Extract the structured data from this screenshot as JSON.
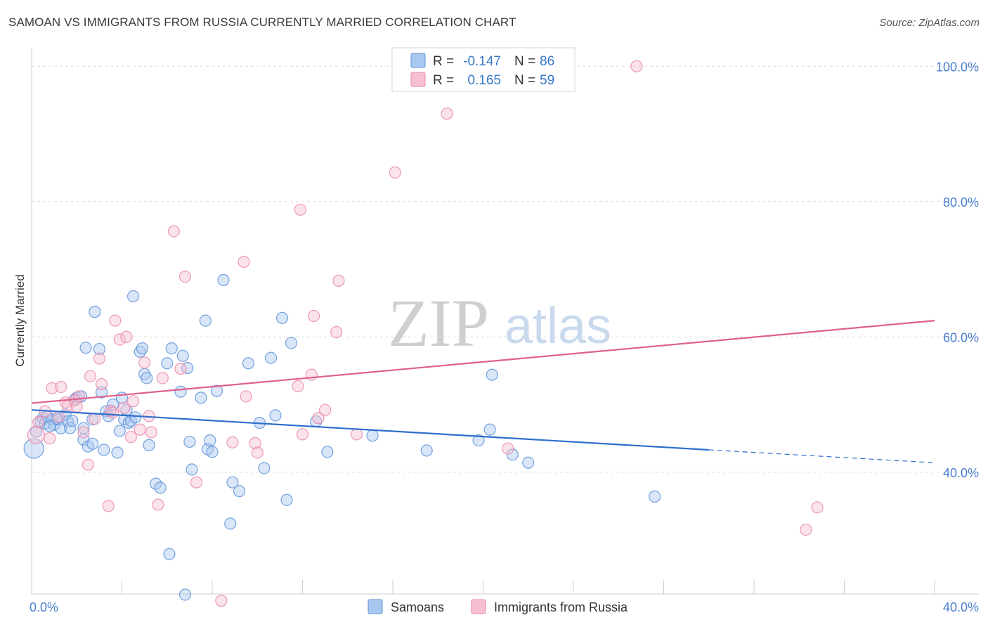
{
  "header": {
    "title": "SAMOAN VS IMMIGRANTS FROM RUSSIA CURRENTLY MARRIED CORRELATION CHART",
    "source_prefix": "Source: ",
    "source_name": "ZipAtlas.com"
  },
  "watermark": {
    "zip": "ZIP",
    "atlas": "atlas"
  },
  "legend": {
    "rows": [
      {
        "r_label": "R =",
        "r_value": "-0.147",
        "n_label": "N =",
        "n_value": "86",
        "color": "#6fa1e3"
      },
      {
        "r_label": "R =",
        "r_value": "0.165",
        "n_label": "N =",
        "n_value": "59",
        "color": "#f09ab8"
      }
    ]
  },
  "colors": {
    "blue_fill": "#a9c8f0",
    "blue_stroke": "#5f93d8",
    "blue_line": "#2d6fcc",
    "pink_fill": "#f6c0d2",
    "pink_stroke": "#e98aab",
    "pink_line": "#e0608c",
    "grid": "#dcdcdc",
    "tick_text": "#4a7fd0"
  },
  "chart_data": {
    "type": "scatter",
    "title": "SAMOAN VS IMMIGRANTS FROM RUSSIA CURRENTLY MARRIED CORRELATION CHART",
    "xlabel": "",
    "ylabel": "Currently Married",
    "xlim": [
      0,
      40
    ],
    "ylim": [
      22,
      102
    ],
    "x_tick_labels": [
      {
        "value": 0,
        "label": "0.0%"
      },
      {
        "value": 40,
        "label": "40.0%"
      }
    ],
    "y_tick_labels": [
      {
        "value": 40,
        "label": "40.0%"
      },
      {
        "value": 60,
        "label": "60.0%"
      },
      {
        "value": 80,
        "label": "80.0%"
      },
      {
        "value": 100,
        "label": "100.0%"
      }
    ],
    "grid": true,
    "legend_position": "top-center",
    "series": [
      {
        "name": "Samoans",
        "r": -0.147,
        "n": 86,
        "trend": {
          "x0": 0,
          "y0": 49.2,
          "x1": 30.0,
          "y1": 43.3,
          "dash_to_x": 40,
          "dash_to_y": 41.4
        },
        "points": [
          [
            0.1,
            43.5,
            14
          ],
          [
            0.2,
            46.0,
            8
          ],
          [
            0.4,
            47.5,
            8
          ],
          [
            0.5,
            48.0,
            8
          ],
          [
            0.6,
            47.2,
            8
          ],
          [
            0.7,
            48.2,
            8
          ],
          [
            0.9,
            47.8,
            8
          ],
          [
            1.0,
            47.0,
            8
          ],
          [
            1.2,
            47.8,
            8
          ],
          [
            1.3,
            46.5,
            8
          ],
          [
            1.5,
            48.5,
            8
          ],
          [
            1.6,
            47.5,
            8
          ],
          [
            1.7,
            46.5,
            8
          ],
          [
            1.8,
            47.6,
            8
          ],
          [
            2.0,
            51.0,
            8
          ],
          [
            2.2,
            51.2,
            8
          ],
          [
            2.3,
            46.5,
            8
          ],
          [
            2.3,
            44.8,
            8
          ],
          [
            2.4,
            58.4,
            8
          ],
          [
            2.5,
            43.8,
            8
          ],
          [
            2.7,
            47.8,
            8
          ],
          [
            2.7,
            44.2,
            8
          ],
          [
            2.8,
            63.7,
            8
          ],
          [
            3.0,
            58.2,
            8
          ],
          [
            3.1,
            51.8,
            8
          ],
          [
            3.2,
            43.3,
            8
          ],
          [
            3.3,
            49.0,
            8
          ],
          [
            3.4,
            48.3,
            8
          ],
          [
            3.5,
            49.1,
            8
          ],
          [
            3.6,
            50.0,
            8
          ],
          [
            3.8,
            42.9,
            8
          ],
          [
            3.9,
            46.1,
            8
          ],
          [
            4.0,
            51.0,
            8
          ],
          [
            4.1,
            47.8,
            8
          ],
          [
            4.2,
            49.2,
            8
          ],
          [
            4.3,
            47.3,
            8
          ],
          [
            4.4,
            47.6,
            8
          ],
          [
            4.5,
            66.0,
            8
          ],
          [
            4.6,
            48.1,
            8
          ],
          [
            4.8,
            57.8,
            8
          ],
          [
            4.9,
            58.3,
            8
          ],
          [
            5.0,
            54.5,
            8
          ],
          [
            5.1,
            53.9,
            8
          ],
          [
            5.2,
            44.0,
            8
          ],
          [
            5.5,
            38.3,
            8
          ],
          [
            5.7,
            37.7,
            8
          ],
          [
            6.0,
            56.1,
            8
          ],
          [
            6.1,
            27.9,
            8
          ],
          [
            6.2,
            58.3,
            8
          ],
          [
            6.6,
            51.9,
            8
          ],
          [
            6.7,
            57.2,
            8
          ],
          [
            6.8,
            21.9,
            8
          ],
          [
            6.9,
            55.4,
            8
          ],
          [
            7.0,
            44.5,
            8
          ],
          [
            7.1,
            40.4,
            8
          ],
          [
            7.5,
            51.0,
            8
          ],
          [
            7.7,
            62.4,
            8
          ],
          [
            7.8,
            43.4,
            8
          ],
          [
            7.9,
            44.7,
            8
          ],
          [
            8.0,
            43.0,
            8
          ],
          [
            8.2,
            52.0,
            8
          ],
          [
            8.5,
            68.4,
            8
          ],
          [
            8.8,
            32.4,
            8
          ],
          [
            8.9,
            38.5,
            8
          ],
          [
            9.2,
            37.2,
            8
          ],
          [
            9.6,
            56.1,
            8
          ],
          [
            10.1,
            47.3,
            8
          ],
          [
            10.3,
            40.6,
            8
          ],
          [
            10.6,
            56.9,
            8
          ],
          [
            10.8,
            48.4,
            8
          ],
          [
            11.1,
            62.8,
            8
          ],
          [
            11.3,
            35.9,
            8
          ],
          [
            11.5,
            59.1,
            8
          ],
          [
            12.6,
            47.5,
            8
          ],
          [
            13.1,
            43.0,
            8
          ],
          [
            15.1,
            45.4,
            8
          ],
          [
            17.5,
            43.2,
            8
          ],
          [
            19.8,
            44.7,
            8
          ],
          [
            20.3,
            46.3,
            8
          ],
          [
            20.4,
            54.4,
            8
          ],
          [
            21.3,
            42.6,
            8
          ],
          [
            22.0,
            41.4,
            8
          ],
          [
            27.6,
            36.4,
            8
          ],
          [
            1.9,
            50.7,
            8
          ],
          [
            1.1,
            47.9,
            8
          ],
          [
            0.8,
            46.8,
            8
          ]
        ]
      },
      {
        "name": "Immigrants from Russia",
        "r": 0.165,
        "n": 59,
        "trend": {
          "x0": 0,
          "y0": 50.2,
          "x1": 40,
          "y1": 62.4
        },
        "points": [
          [
            0.2,
            45.5,
            12
          ],
          [
            0.3,
            47.4,
            8
          ],
          [
            0.6,
            49.0,
            8
          ],
          [
            0.8,
            45.0,
            8
          ],
          [
            0.9,
            52.4,
            8
          ],
          [
            1.2,
            48.2,
            8
          ],
          [
            1.3,
            52.6,
            8
          ],
          [
            1.5,
            50.3,
            8
          ],
          [
            1.6,
            49.8,
            8
          ],
          [
            1.9,
            50.6,
            8
          ],
          [
            2.0,
            49.7,
            8
          ],
          [
            2.1,
            51.2,
            8
          ],
          [
            2.3,
            45.9,
            8
          ],
          [
            2.5,
            41.1,
            8
          ],
          [
            2.6,
            54.2,
            8
          ],
          [
            2.8,
            47.9,
            8
          ],
          [
            3.0,
            56.8,
            8
          ],
          [
            3.1,
            53.0,
            8
          ],
          [
            3.4,
            35.0,
            8
          ],
          [
            3.5,
            49.1,
            8
          ],
          [
            3.6,
            48.8,
            8
          ],
          [
            3.7,
            62.4,
            8
          ],
          [
            3.9,
            59.6,
            8
          ],
          [
            4.1,
            49.5,
            8
          ],
          [
            4.2,
            60.0,
            8
          ],
          [
            4.4,
            45.2,
            8
          ],
          [
            4.5,
            50.5,
            8
          ],
          [
            4.8,
            46.3,
            8
          ],
          [
            5.0,
            56.2,
            8
          ],
          [
            5.2,
            48.3,
            8
          ],
          [
            5.3,
            45.9,
            8
          ],
          [
            5.6,
            35.2,
            8
          ],
          [
            5.8,
            53.9,
            8
          ],
          [
            6.3,
            75.6,
            8
          ],
          [
            6.6,
            55.3,
            8
          ],
          [
            6.8,
            68.9,
            8
          ],
          [
            7.3,
            38.5,
            8
          ],
          [
            8.4,
            21.0,
            8
          ],
          [
            8.9,
            44.4,
            8
          ],
          [
            9.4,
            71.1,
            8
          ],
          [
            9.5,
            51.2,
            8
          ],
          [
            9.9,
            44.3,
            8
          ],
          [
            10.0,
            42.9,
            8
          ],
          [
            11.8,
            52.7,
            8
          ],
          [
            11.9,
            78.8,
            8
          ],
          [
            12.0,
            45.6,
            8
          ],
          [
            12.4,
            54.4,
            8
          ],
          [
            12.5,
            63.1,
            8
          ],
          [
            12.7,
            48.0,
            8
          ],
          [
            13.0,
            49.2,
            8
          ],
          [
            13.5,
            60.7,
            8
          ],
          [
            13.6,
            68.3,
            8
          ],
          [
            14.4,
            45.6,
            8
          ],
          [
            16.1,
            84.3,
            8
          ],
          [
            18.4,
            93.0,
            8
          ],
          [
            21.1,
            43.5,
            8
          ],
          [
            26.8,
            100.0,
            8
          ],
          [
            34.3,
            31.5,
            8
          ],
          [
            34.8,
            34.8,
            8
          ]
        ]
      }
    ]
  }
}
